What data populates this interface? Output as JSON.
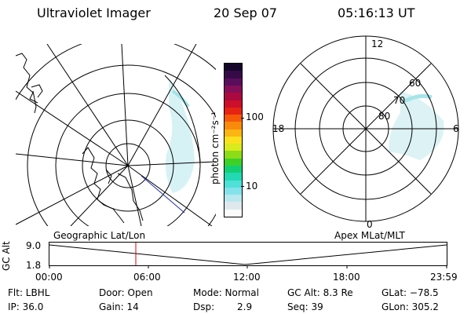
{
  "header": {
    "instrument": "Ultraviolet Imager",
    "date": "20 Sep 07",
    "time": "05:16:13 UT"
  },
  "colorbar": {
    "unit_label": "photon cm⁻²s⁻¹",
    "ticks": [
      "100",
      "10"
    ],
    "colors": [
      "#fbfbfb",
      "#dfe9ed",
      "#b9e8ef",
      "#84e3ea",
      "#4fe0d8",
      "#22d9b4",
      "#13cf74",
      "#3fd028",
      "#8ddc18",
      "#d9ea1d",
      "#fbe11d",
      "#fbb613",
      "#f98a0c",
      "#f55a0a",
      "#e52414",
      "#cc0f2a",
      "#aa0a3f",
      "#840f58",
      "#5a0d5c",
      "#350a47",
      "#140629"
    ]
  },
  "polar_plot": {
    "top_label": "12",
    "bottom_label": "0",
    "left_label": "18",
    "right_label": "6",
    "ring_labels": [
      "80",
      "70",
      "60"
    ]
  },
  "altitude_strip": {
    "left_title": "Geographic Lat/Lon",
    "right_title": "Apex MLat/MLT",
    "axis_label": "GC Alt",
    "y_ticks": [
      "9.0",
      "1.8"
    ],
    "time_ticks": [
      "00:00",
      "06:00",
      "12:00",
      "18:00",
      "23:59"
    ],
    "marker_color": "#e00000"
  },
  "status": {
    "flt": "Flt: LBHL",
    "ip": "IP: 36.0",
    "door": "Door: Open",
    "gain": "Gain: 14",
    "mode": "Mode: Normal",
    "dsp_label": "Dsp:",
    "dsp_value": "2.9",
    "gc_alt": "GC Alt: 8.3 Re",
    "seq": "Seq: 39",
    "glat": "GLat: −78.5",
    "glon": "GLon: 305.2"
  }
}
